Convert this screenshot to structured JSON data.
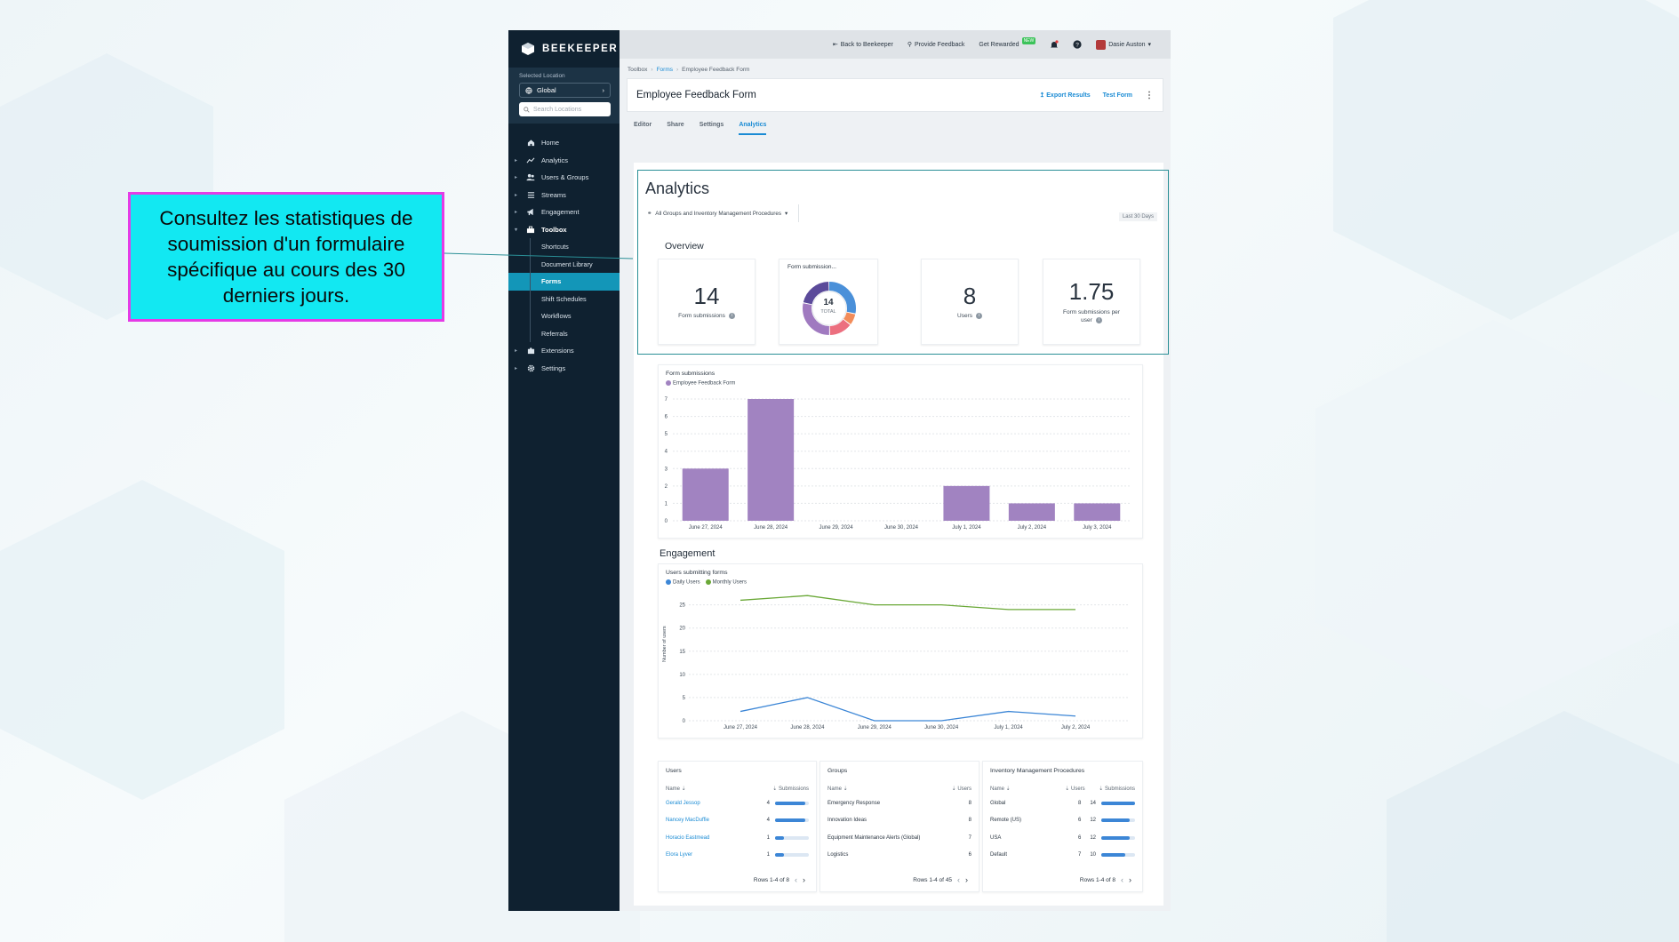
{
  "callout": {
    "text": "Consultez les statistiques de soumission d'un formulaire spécifique au cours des 30 derniers jours."
  },
  "app": {
    "brand": "BEEKEEPER"
  },
  "sidebar": {
    "location_label": "Selected Location",
    "location_value": "Global",
    "search_placeholder": "Search Locations",
    "items": [
      {
        "label": "Home",
        "icon": "home-icon"
      },
      {
        "label": "Analytics",
        "icon": "analytics-icon"
      },
      {
        "label": "Users & Groups",
        "icon": "users-icon"
      },
      {
        "label": "Streams",
        "icon": "streams-icon"
      },
      {
        "label": "Engagement",
        "icon": "megaphone-icon"
      },
      {
        "label": "Toolbox",
        "icon": "toolbox-icon"
      }
    ],
    "toolbox_items": [
      "Shortcuts",
      "Document Library",
      "Forms",
      "Shift Schedules",
      "Workflows",
      "Referrals"
    ],
    "bottom_items": [
      {
        "label": "Extensions",
        "icon": "puzzle-icon"
      },
      {
        "label": "Settings",
        "icon": "gear-icon"
      }
    ]
  },
  "topbar": {
    "back": "Back to Beekeeper",
    "feedback": "Provide Feedback",
    "rewarded": "Get Rewarded",
    "new_badge": "NEW",
    "user": "Dasie Auston"
  },
  "breadcrumb": [
    "Toolbox",
    "Forms",
    "Employee Feedback Form"
  ],
  "form": {
    "title": "Employee Feedback Form",
    "export": "Export Results",
    "test": "Test Form",
    "more": "⋮"
  },
  "tabs": [
    "Editor",
    "Share",
    "Settings",
    "Analytics"
  ],
  "analytics": {
    "title": "Analytics",
    "filter": "All Groups and Inventory Management Procedures",
    "range": "Last 30 Days",
    "overview": "Overview",
    "stats": {
      "submissions": {
        "value": "14",
        "label": "Form submissions"
      },
      "donut_title": "Form submission...",
      "donut_value": "14",
      "donut_label": "TOTAL",
      "users": {
        "value": "8",
        "label": "Users"
      },
      "per_user": {
        "value": "1.75",
        "label": "Form submissions per user"
      }
    },
    "donut_slices": [
      {
        "value": 4,
        "color": "#4a90d9"
      },
      {
        "value": 1,
        "color": "#f28c5a"
      },
      {
        "value": 2,
        "color": "#ec6f7f"
      },
      {
        "value": 4,
        "color": "#a07ac0"
      },
      {
        "value": 3,
        "color": "#5b4a9a"
      }
    ]
  },
  "chart_data": [
    {
      "type": "bar",
      "title": "Form submissions",
      "series": [
        {
          "name": "Employee Feedback Form",
          "color": "#a183c1",
          "values": [
            3,
            7,
            0,
            0,
            2,
            1,
            1
          ]
        }
      ],
      "categories": [
        "June 27, 2024",
        "June 28, 2024",
        "June 29, 2024",
        "June 30, 2024",
        "July 1, 2024",
        "July 2, 2024",
        "July 3, 2024"
      ],
      "yticks": [
        "0",
        "1",
        "2",
        "3",
        "4",
        "5",
        "6",
        "7"
      ],
      "ylim": [
        0,
        7
      ]
    },
    {
      "type": "line",
      "title": "Users submitting forms",
      "ylabel": "Number of users",
      "x": [
        "June 27, 2024",
        "June 28, 2024",
        "June 29, 2024",
        "June 30, 2024",
        "July 1, 2024",
        "July 2, 2024"
      ],
      "series": [
        {
          "name": "Daily Users",
          "color": "#3c86d6",
          "values": [
            2,
            5,
            0,
            0,
            2,
            1
          ]
        },
        {
          "name": "Monthly Users",
          "color": "#6aa837",
          "values": [
            26,
            27,
            25,
            25,
            24,
            24
          ]
        }
      ],
      "yticks": [
        "0",
        "5",
        "10",
        "15",
        "20",
        "25"
      ],
      "ylim": [
        0,
        28
      ]
    }
  ],
  "engagement": {
    "title": "Engagement"
  },
  "tables": {
    "users": {
      "title": "Users",
      "headers": [
        "Name",
        "Submissions"
      ],
      "rows": [
        {
          "name": "Gerald Jessop",
          "value": "4",
          "fill": 0.9
        },
        {
          "name": "Nancey MacDuffie",
          "value": "4",
          "fill": 0.9
        },
        {
          "name": "Horacio Eastmead",
          "value": "1",
          "fill": 0.25
        },
        {
          "name": "Elora Lyver",
          "value": "1",
          "fill": 0.25
        }
      ],
      "pager": "Rows 1-4 of 8"
    },
    "groups": {
      "title": "Groups",
      "headers": [
        "Name",
        "Users"
      ],
      "rows": [
        {
          "name": "Emergency Response",
          "value": "8"
        },
        {
          "name": "Innovation Ideas",
          "value": "8"
        },
        {
          "name": "Equipment Maintenance Alerts (Global)",
          "value": "7"
        },
        {
          "name": "Logistics",
          "value": "6"
        }
      ],
      "pager": "Rows 1-4 of 45"
    },
    "inventory": {
      "title": "Inventory Management Procedures",
      "headers": [
        "Name",
        "Users",
        "Submissions"
      ],
      "rows": [
        {
          "name": "Global",
          "users": "8",
          "value": "14",
          "fill": 1.0
        },
        {
          "name": "Remote (US)",
          "users": "6",
          "value": "12",
          "fill": 0.85
        },
        {
          "name": "USA",
          "users": "6",
          "value": "12",
          "fill": 0.85
        },
        {
          "name": "Default",
          "users": "7",
          "value": "10",
          "fill": 0.72
        }
      ],
      "pager": "Rows 1-4 of 8"
    }
  }
}
